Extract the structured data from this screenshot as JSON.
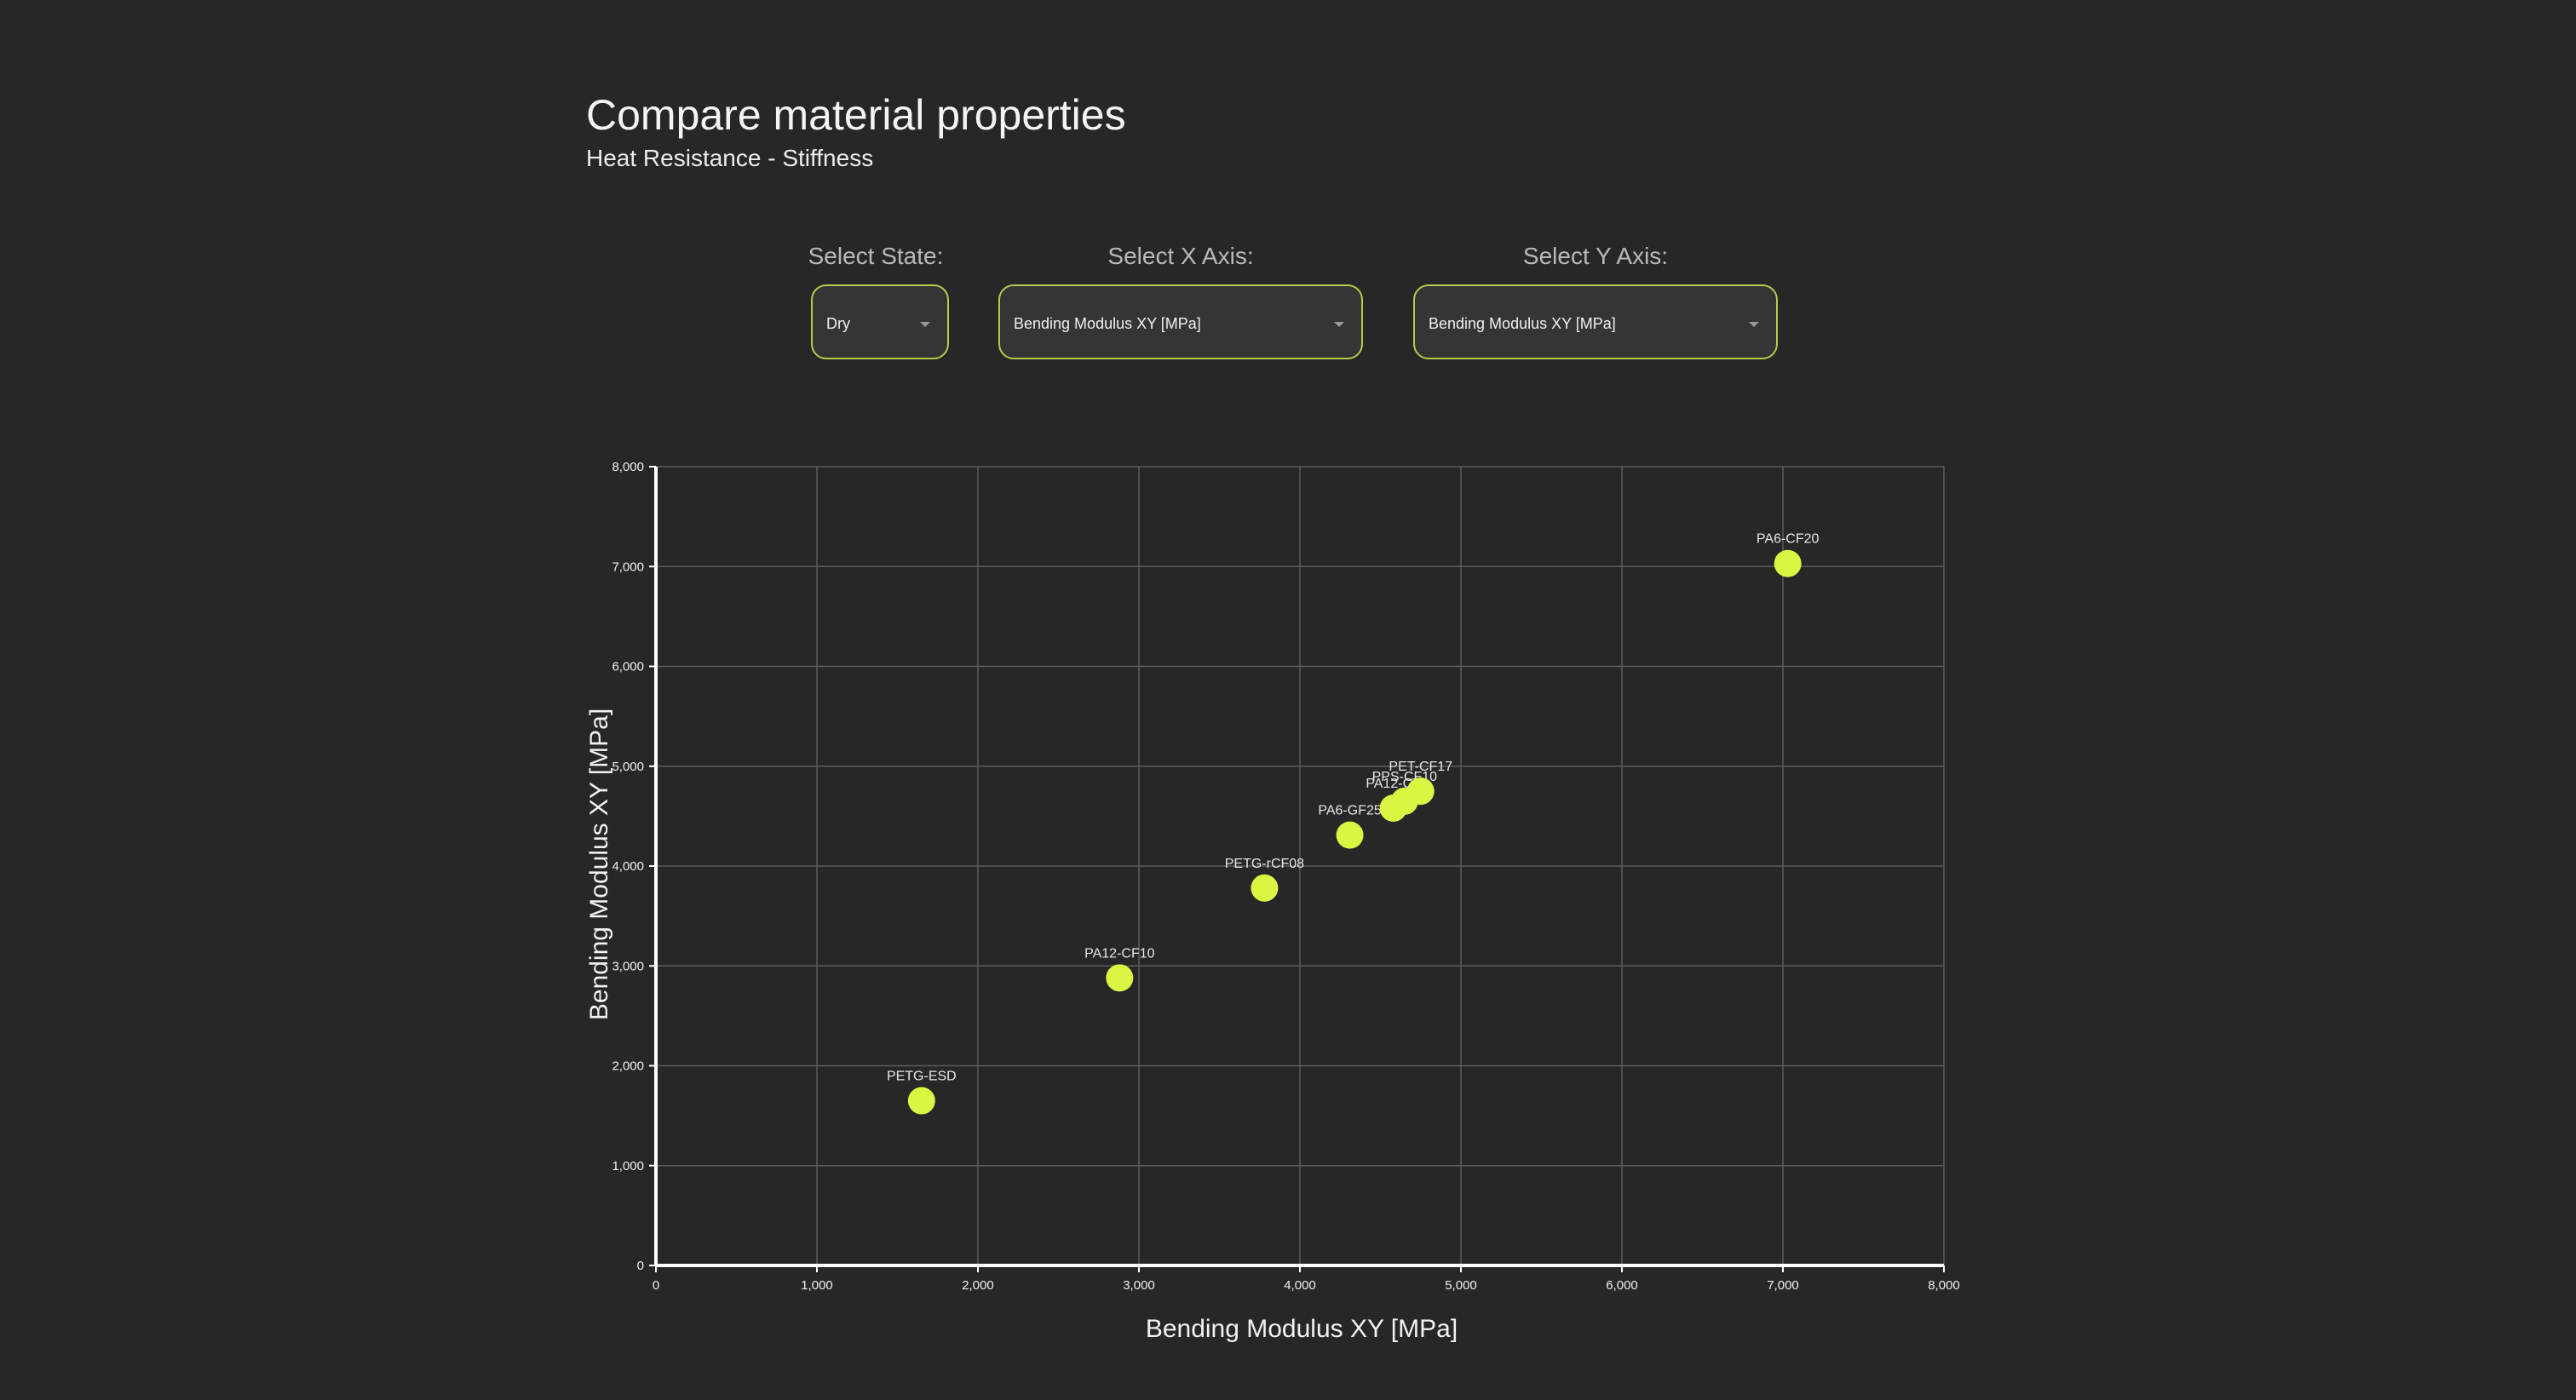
{
  "header": {
    "title": "Compare material properties",
    "subtitle": "Heat Resistance - Stiffness"
  },
  "controls": {
    "state": {
      "label": "Select State:",
      "value": "Dry"
    },
    "x_axis": {
      "label": "Select X Axis:",
      "value": "Bending Modulus XY [MPa]"
    },
    "y_axis": {
      "label": "Select Y Axis:",
      "value": "Bending Modulus XY [MPa]"
    }
  },
  "colors": {
    "background": "#272727",
    "accent": "#dcf542",
    "select_border": "#b8c84a",
    "grid": "#5c5c5c",
    "axis": "#ffffff"
  },
  "chart_data": {
    "type": "scatter",
    "xlabel": "Bending Modulus XY [MPa]",
    "ylabel": "Bending Modulus XY [MPa]",
    "xlim": [
      0,
      8000
    ],
    "ylim": [
      0,
      8000
    ],
    "xticks": [
      0,
      1000,
      2000,
      3000,
      4000,
      5000,
      6000,
      7000,
      8000
    ],
    "yticks": [
      0,
      1000,
      2000,
      3000,
      4000,
      5000,
      6000,
      7000,
      8000
    ],
    "xtick_labels": [
      "0",
      "1,000",
      "2,000",
      "3,000",
      "4,000",
      "5,000",
      "6,000",
      "7,000",
      "8,000"
    ],
    "ytick_labels": [
      "0",
      "1,000",
      "2,000",
      "3,000",
      "4,000",
      "5,000",
      "6,000",
      "7,000",
      "8,000"
    ],
    "grid": true,
    "points": [
      {
        "label": "PETG-ESD",
        "x": 1650,
        "y": 1650
      },
      {
        "label": "PA12-CF10",
        "x": 2880,
        "y": 2880
      },
      {
        "label": "PETG-rCF08",
        "x": 3780,
        "y": 3780
      },
      {
        "label": "PA6-GF25",
        "x": 4310,
        "y": 4310
      },
      {
        "label": "PA12-CF",
        "x": 4580,
        "y": 4580
      },
      {
        "label": "PPS-CF10",
        "x": 4650,
        "y": 4650
      },
      {
        "label": "PET-CF17",
        "x": 4750,
        "y": 4750
      },
      {
        "label": "PA6-CF20",
        "x": 7030,
        "y": 7030
      }
    ]
  }
}
